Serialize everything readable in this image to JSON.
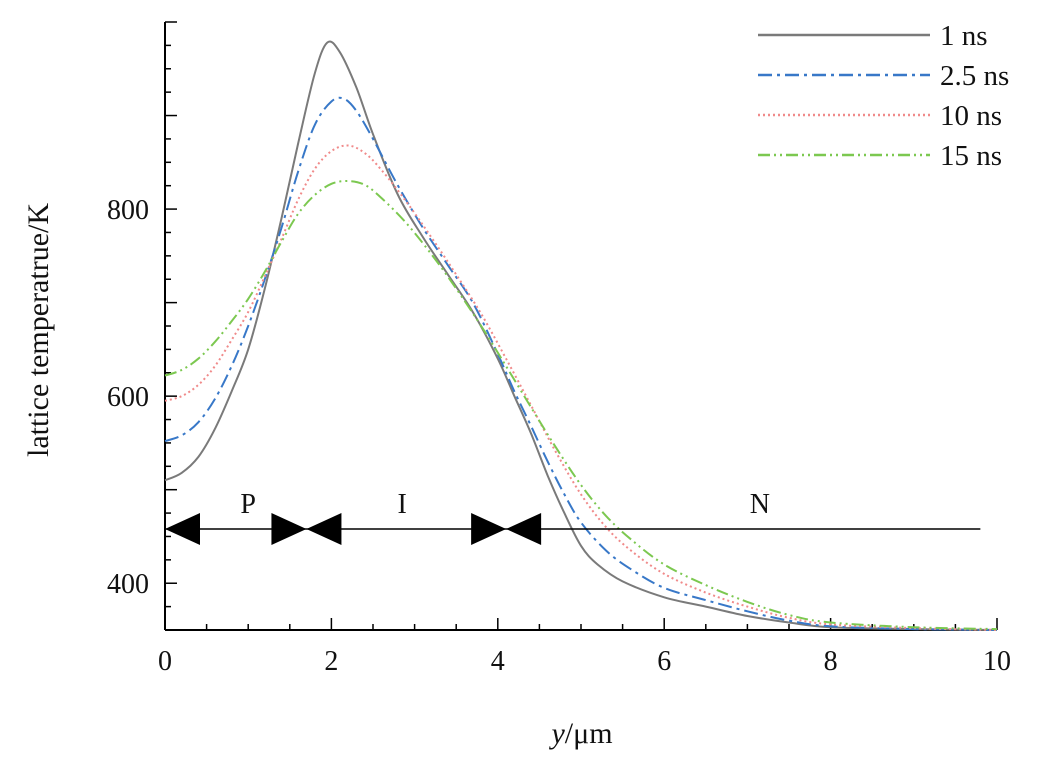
{
  "chart_data": {
    "type": "line",
    "xlabel_var": "y",
    "xlabel_unit": "/μm",
    "ylabel": "lattice temperatrue/K",
    "xlim": [
      0,
      10
    ],
    "ylim": [
      350,
      1000
    ],
    "xticks": [
      0,
      2,
      4,
      6,
      8,
      10
    ],
    "yticks": [
      400,
      600,
      800
    ],
    "grid": false,
    "legend_position": "top-right",
    "series": [
      {
        "name": "1 ns",
        "color": "#7a7a7a",
        "dash": "solid",
        "points": [
          [
            0,
            510
          ],
          [
            0.2,
            518
          ],
          [
            0.4,
            535
          ],
          [
            0.6,
            565
          ],
          [
            0.8,
            605
          ],
          [
            1.0,
            650
          ],
          [
            1.2,
            715
          ],
          [
            1.4,
            790
          ],
          [
            1.6,
            870
          ],
          [
            1.8,
            945
          ],
          [
            1.95,
            978
          ],
          [
            2.1,
            968
          ],
          [
            2.3,
            930
          ],
          [
            2.5,
            880
          ],
          [
            2.8,
            815
          ],
          [
            3.1,
            770
          ],
          [
            3.4,
            730
          ],
          [
            3.7,
            690
          ],
          [
            4.0,
            640
          ],
          [
            4.2,
            600
          ],
          [
            4.4,
            560
          ],
          [
            4.6,
            515
          ],
          [
            4.8,
            475
          ],
          [
            5.0,
            440
          ],
          [
            5.2,
            420
          ],
          [
            5.5,
            402
          ],
          [
            6.0,
            385
          ],
          [
            6.5,
            375
          ],
          [
            7.0,
            365
          ],
          [
            7.5,
            358
          ],
          [
            8.0,
            353
          ],
          [
            9.0,
            351
          ],
          [
            10.0,
            350
          ]
        ]
      },
      {
        "name": "2.5 ns",
        "color": "#3878c8",
        "dash": "dashdot",
        "points": [
          [
            0,
            552
          ],
          [
            0.2,
            558
          ],
          [
            0.4,
            572
          ],
          [
            0.6,
            597
          ],
          [
            0.8,
            632
          ],
          [
            1.0,
            675
          ],
          [
            1.2,
            725
          ],
          [
            1.4,
            780
          ],
          [
            1.6,
            840
          ],
          [
            1.8,
            890
          ],
          [
            2.0,
            915
          ],
          [
            2.15,
            918
          ],
          [
            2.3,
            905
          ],
          [
            2.5,
            875
          ],
          [
            2.8,
            825
          ],
          [
            3.1,
            780
          ],
          [
            3.4,
            740
          ],
          [
            3.7,
            700
          ],
          [
            4.0,
            645
          ],
          [
            4.2,
            605
          ],
          [
            4.4,
            568
          ],
          [
            4.6,
            530
          ],
          [
            4.8,
            495
          ],
          [
            5.0,
            465
          ],
          [
            5.3,
            435
          ],
          [
            5.6,
            415
          ],
          [
            6.0,
            395
          ],
          [
            6.5,
            382
          ],
          [
            7.0,
            370
          ],
          [
            7.5,
            360
          ],
          [
            8.0,
            354
          ],
          [
            9.0,
            351
          ],
          [
            10.0,
            350
          ]
        ]
      },
      {
        "name": "10 ns",
        "color": "#f08a8a",
        "dash": "dotted",
        "points": [
          [
            0,
            595
          ],
          [
            0.2,
            600
          ],
          [
            0.4,
            612
          ],
          [
            0.6,
            632
          ],
          [
            0.8,
            660
          ],
          [
            1.0,
            690
          ],
          [
            1.2,
            728
          ],
          [
            1.4,
            768
          ],
          [
            1.6,
            810
          ],
          [
            1.8,
            843
          ],
          [
            2.0,
            862
          ],
          [
            2.2,
            868
          ],
          [
            2.4,
            860
          ],
          [
            2.6,
            842
          ],
          [
            2.9,
            808
          ],
          [
            3.2,
            770
          ],
          [
            3.5,
            730
          ],
          [
            3.8,
            688
          ],
          [
            4.1,
            640
          ],
          [
            4.4,
            590
          ],
          [
            4.7,
            540
          ],
          [
            5.0,
            495
          ],
          [
            5.3,
            460
          ],
          [
            5.6,
            435
          ],
          [
            6.0,
            410
          ],
          [
            6.5,
            390
          ],
          [
            7.0,
            375
          ],
          [
            7.5,
            363
          ],
          [
            8.0,
            356
          ],
          [
            9.0,
            352
          ],
          [
            10.0,
            350
          ]
        ]
      },
      {
        "name": "15 ns",
        "color": "#7cc850",
        "dash": "dashdotdot",
        "points": [
          [
            0,
            622
          ],
          [
            0.2,
            628
          ],
          [
            0.4,
            640
          ],
          [
            0.6,
            658
          ],
          [
            0.8,
            680
          ],
          [
            1.0,
            704
          ],
          [
            1.2,
            733
          ],
          [
            1.4,
            765
          ],
          [
            1.6,
            795
          ],
          [
            1.8,
            815
          ],
          [
            2.0,
            827
          ],
          [
            2.2,
            830
          ],
          [
            2.4,
            826
          ],
          [
            2.6,
            812
          ],
          [
            2.9,
            785
          ],
          [
            3.2,
            752
          ],
          [
            3.5,
            715
          ],
          [
            3.8,
            675
          ],
          [
            4.1,
            632
          ],
          [
            4.4,
            588
          ],
          [
            4.7,
            545
          ],
          [
            5.0,
            505
          ],
          [
            5.3,
            472
          ],
          [
            5.6,
            447
          ],
          [
            6.0,
            420
          ],
          [
            6.5,
            398
          ],
          [
            7.0,
            380
          ],
          [
            7.5,
            366
          ],
          [
            8.0,
            358
          ],
          [
            9.0,
            353
          ],
          [
            10.0,
            351
          ]
        ]
      }
    ],
    "regions": {
      "y_value": 458,
      "line_end_x": 9.8,
      "arrows": [
        {
          "x": 0.0,
          "dir": "left"
        },
        {
          "x": 1.7,
          "dir": "right"
        },
        {
          "x": 1.7,
          "dir": "left"
        },
        {
          "x": 4.1,
          "dir": "right"
        },
        {
          "x": 4.1,
          "dir": "left"
        }
      ],
      "labels": [
        {
          "text": "P",
          "x": 1.0,
          "y": 475
        },
        {
          "text": "I",
          "x": 2.85,
          "y": 475
        },
        {
          "text": "N",
          "x": 7.15,
          "y": 475
        }
      ]
    }
  }
}
